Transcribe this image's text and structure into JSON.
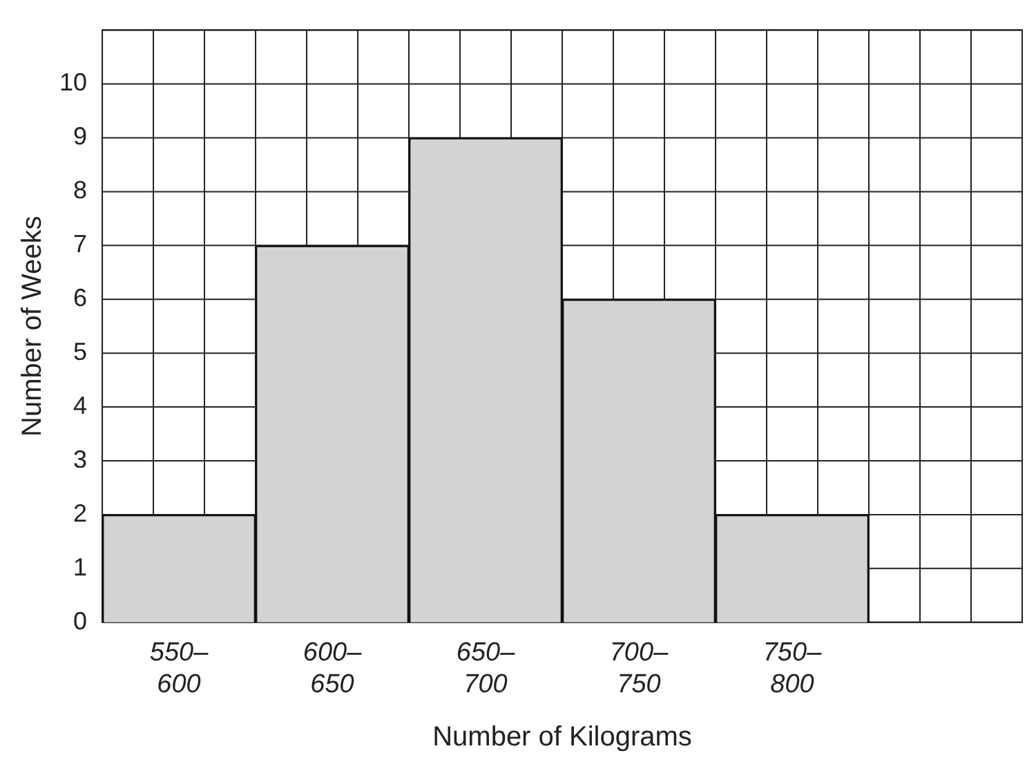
{
  "chart_data": {
    "type": "bar",
    "xlabel": "Number of Kilograms",
    "ylabel": "Number of Weeks",
    "categories": [
      "550–600",
      "600–650",
      "650–700",
      "700–750",
      "750–800",
      null
    ],
    "values": [
      2,
      7,
      9,
      6,
      2,
      null
    ],
    "color": "#d3d3d3",
    "ylim": [
      0,
      11
    ],
    "yticks": [
      0,
      1,
      2,
      3,
      4,
      5,
      6,
      7,
      8,
      9,
      10
    ],
    "grid": true,
    "legend": false
  }
}
